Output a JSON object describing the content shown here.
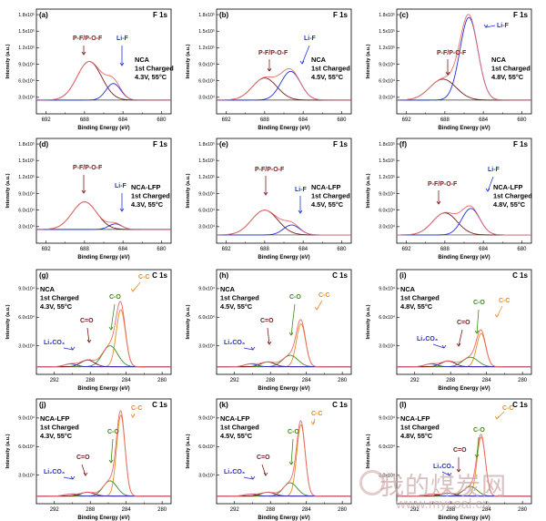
{
  "figure": {
    "colors": {
      "envelope": "#e96b6b",
      "pf": "#7a1a1a",
      "lif": "#1f2fe0",
      "c1": "#e88a20",
      "c2": "#3f8a16",
      "c3": "#7a1a1a",
      "c4": "#2b2bd6",
      "baseline": "#333333",
      "axis": "#000000"
    },
    "watermark": {
      "cn": "我的煤炭网",
      "url": "www.mycoal.cn"
    }
  },
  "chart_data": [
    {
      "id": "a",
      "type": "line",
      "panel_label": "(a)",
      "element": "F 1s",
      "xlabel": "Binding Energy (eV)",
      "ylabel": "Intensity (a.u.)",
      "xlim": [
        693,
        679
      ],
      "xticks": [
        692,
        688,
        684,
        680
      ],
      "ylim": [
        0,
        190000
      ],
      "yticks": [
        "3.0x10⁴",
        "6.0x10⁴",
        "9.0x10⁴",
        "1.2x10⁵",
        "1.5x10⁵",
        "1.8x10⁵"
      ],
      "ytick_values": [
        30000,
        60000,
        90000,
        120000,
        150000,
        180000
      ],
      "baseline": 25000,
      "peaks": [
        {
          "center": 687.5,
          "height": 70000,
          "fwhm": 3.0,
          "color": "pf"
        },
        {
          "center": 685.0,
          "height": 30000,
          "fwhm": 1.8,
          "color": "lif"
        }
      ],
      "labels": [
        {
          "text": "P-F/P-O-F",
          "color": "pf"
        },
        {
          "text": "Li-F",
          "color": "lif"
        }
      ],
      "info": [
        "NCA",
        "1st Charged",
        "4.3V, 55°C"
      ]
    },
    {
      "id": "b",
      "type": "line",
      "panel_label": "(b)",
      "element": "F 1s",
      "xlabel": "Binding Energy (eV)",
      "ylabel": "Intensity (a.u.)",
      "xlim": [
        693,
        679
      ],
      "xticks": [
        692,
        688,
        684,
        680
      ],
      "ylim": [
        0,
        190000
      ],
      "yticks": [
        "3.0x10⁴",
        "6.0x10⁴",
        "9.0x10⁴",
        "1.2x10⁵",
        "1.5x10⁵",
        "1.8x10⁵"
      ],
      "ytick_values": [
        30000,
        60000,
        90000,
        120000,
        150000,
        180000
      ],
      "baseline": 25000,
      "peaks": [
        {
          "center": 688.0,
          "height": 40000,
          "fwhm": 3.0,
          "color": "pf"
        },
        {
          "center": 685.3,
          "height": 52000,
          "fwhm": 2.4,
          "color": "lif"
        }
      ],
      "labels": [
        {
          "text": "P-F/P-O-F",
          "color": "pf"
        },
        {
          "text": "Li-F",
          "color": "lif"
        }
      ],
      "info": [
        "NCA",
        "1st Charged",
        "4.5V, 55°C"
      ]
    },
    {
      "id": "c",
      "type": "line",
      "panel_label": "(c)",
      "element": "F 1s",
      "xlabel": "Binding Energy (eV)",
      "ylabel": "Intensity (a.u.)",
      "xlim": [
        693,
        679
      ],
      "xticks": [
        692,
        688,
        684,
        680
      ],
      "ylim": [
        0,
        190000
      ],
      "yticks": [
        "3.0x10⁴",
        "6.0x10⁴",
        "9.0x10⁴",
        "1.2x10⁵",
        "1.5x10⁵",
        "1.8x10⁵"
      ],
      "ytick_values": [
        30000,
        60000,
        90000,
        120000,
        150000,
        180000
      ],
      "baseline": 25000,
      "peaks": [
        {
          "center": 688.2,
          "height": 38000,
          "fwhm": 3.2,
          "color": "pf"
        },
        {
          "center": 685.5,
          "height": 150000,
          "fwhm": 2.2,
          "color": "lif"
        }
      ],
      "labels": [
        {
          "text": "P-F/P-O-F",
          "color": "pf"
        },
        {
          "text": "Li-F",
          "color": "lif"
        }
      ],
      "info": [
        "NCA",
        "1st Charged",
        "4.8V, 55°C"
      ]
    },
    {
      "id": "d",
      "type": "line",
      "panel_label": "(d)",
      "element": "F 1s",
      "xlabel": "Binding Energy (eV)",
      "ylabel": "Intensity (a.u.)",
      "xlim": [
        693,
        679
      ],
      "xticks": [
        692,
        688,
        684,
        680
      ],
      "ylim": [
        0,
        190000
      ],
      "yticks": [
        "3.0x10⁴",
        "6.0x10⁴",
        "9.0x10⁴",
        "1.2x10⁵",
        "1.5x10⁵",
        "1.8x10⁵"
      ],
      "ytick_values": [
        30000,
        60000,
        90000,
        120000,
        150000,
        180000
      ],
      "baseline": 25000,
      "peaks": [
        {
          "center": 688.0,
          "height": 50000,
          "fwhm": 3.0,
          "color": "pf"
        },
        {
          "center": 684.8,
          "height": 10000,
          "fwhm": 1.6,
          "color": "lif"
        }
      ],
      "labels": [
        {
          "text": "P-F/P-O-F",
          "color": "pf"
        },
        {
          "text": "Li-F",
          "color": "lif"
        }
      ],
      "info": [
        "NCA-LFP",
        "1st Charged",
        "4.3V, 55°C"
      ]
    },
    {
      "id": "e",
      "type": "line",
      "panel_label": "(e)",
      "element": "F 1s",
      "xlabel": "Binding Energy (eV)",
      "ylabel": "Intensity (a.u.)",
      "xlim": [
        693,
        679
      ],
      "xticks": [
        692,
        688,
        684,
        680
      ],
      "ylim": [
        0,
        190000
      ],
      "yticks": [
        "3.0x10⁴",
        "6.0x10⁴",
        "9.0x10⁴",
        "1.2x10⁵",
        "1.5x10⁵",
        "1.8x10⁵"
      ],
      "ytick_values": [
        30000,
        60000,
        90000,
        120000,
        150000,
        180000
      ],
      "baseline": 15000,
      "peaks": [
        {
          "center": 688.0,
          "height": 45000,
          "fwhm": 3.2,
          "color": "pf"
        },
        {
          "center": 685.2,
          "height": 18000,
          "fwhm": 2.0,
          "color": "lif"
        }
      ],
      "labels": [
        {
          "text": "P-F/P-O-F",
          "color": "pf"
        },
        {
          "text": "Li-F",
          "color": "lif"
        }
      ],
      "info": [
        "NCA-LFP",
        "1st Charged",
        "4.5V, 55°C"
      ]
    },
    {
      "id": "f",
      "type": "line",
      "panel_label": "(f)",
      "element": "F 1s",
      "xlabel": "Binding Energy (eV)",
      "ylabel": "Intensity (a.u.)",
      "xlim": [
        693,
        679
      ],
      "xticks": [
        692,
        688,
        684,
        680
      ],
      "ylim": [
        0,
        190000
      ],
      "yticks": [
        "3.0x10⁴",
        "6.0x10⁴",
        "9.0x10⁴",
        "1.2x10⁵",
        "1.5x10⁵",
        "1.8x10⁵"
      ],
      "ytick_values": [
        30000,
        60000,
        90000,
        120000,
        150000,
        180000
      ],
      "baseline": 15000,
      "peaks": [
        {
          "center": 688.0,
          "height": 40000,
          "fwhm": 3.0,
          "color": "pf"
        },
        {
          "center": 685.3,
          "height": 48000,
          "fwhm": 2.2,
          "color": "lif"
        }
      ],
      "labels": [
        {
          "text": "P-F/P-O-F",
          "color": "pf"
        },
        {
          "text": "Li-F",
          "color": "lif"
        }
      ],
      "info": [
        "NCA-LFP",
        "1st Charged",
        "4.8V, 55°C"
      ]
    },
    {
      "id": "g",
      "type": "line",
      "panel_label": "(g)",
      "element": "C 1s",
      "xlabel": "Binding Energy (eV)",
      "ylabel": "Intensity (a.u.)",
      "xlim": [
        294,
        279
      ],
      "xticks": [
        292,
        288,
        284,
        280
      ],
      "ylim": [
        0,
        110000
      ],
      "yticks": [
        "3.0x10⁴",
        "6.0x10⁴",
        "9.0x10⁴"
      ],
      "ytick_values": [
        30000,
        60000,
        90000
      ],
      "baseline": 8000,
      "peaks": [
        {
          "center": 284.6,
          "height": 60000,
          "fwhm": 1.2,
          "color": "c1"
        },
        {
          "center": 285.8,
          "height": 22000,
          "fwhm": 2.0,
          "color": "c2"
        },
        {
          "center": 288.3,
          "height": 7000,
          "fwhm": 1.8,
          "color": "c3"
        },
        {
          "center": 290.2,
          "height": 3000,
          "fwhm": 1.6,
          "color": "c4"
        }
      ],
      "labels": [
        {
          "text": "C-C",
          "color": "c1"
        },
        {
          "text": "C-O",
          "color": "c2"
        },
        {
          "text": "C=O",
          "color": "c3"
        },
        {
          "text": "Li₂CO₃",
          "color": "c4"
        }
      ],
      "info": [
        "NCA",
        "1st Charged",
        "4.3V, 55°C"
      ]
    },
    {
      "id": "h",
      "type": "line",
      "panel_label": "(h)",
      "element": "C 1s",
      "xlabel": "Binding Energy (eV)",
      "ylabel": "Intensity (a.u.)",
      "xlim": [
        294,
        279
      ],
      "xticks": [
        292,
        288,
        284,
        280
      ],
      "ylim": [
        0,
        110000
      ],
      "yticks": [
        "3.0x10⁴",
        "6.0x10⁴",
        "9.0x10⁴"
      ],
      "ytick_values": [
        30000,
        60000,
        90000
      ],
      "baseline": 8000,
      "peaks": [
        {
          "center": 284.6,
          "height": 45000,
          "fwhm": 1.2,
          "color": "c1"
        },
        {
          "center": 285.8,
          "height": 12000,
          "fwhm": 2.0,
          "color": "c2"
        },
        {
          "center": 288.3,
          "height": 5000,
          "fwhm": 1.8,
          "color": "c3"
        },
        {
          "center": 290.2,
          "height": 3000,
          "fwhm": 1.6,
          "color": "c4"
        }
      ],
      "labels": [
        {
          "text": "C-C",
          "color": "c1"
        },
        {
          "text": "C-O",
          "color": "c2"
        },
        {
          "text": "C=O",
          "color": "c3"
        },
        {
          "text": "Li₂CO₃",
          "color": "c4"
        }
      ],
      "info": [
        "NCA",
        "1st Charged",
        "4.5V, 55°C"
      ]
    },
    {
      "id": "i",
      "type": "line",
      "panel_label": "(i)",
      "element": "C 1s",
      "xlabel": "Binding Energy (eV)",
      "ylabel": "Intensity (a.u.)",
      "xlim": [
        294,
        279
      ],
      "xticks": [
        292,
        288,
        284,
        280
      ],
      "ylim": [
        0,
        110000
      ],
      "yticks": [
        "3.0x10⁴",
        "6.0x10⁴",
        "9.0x10⁴"
      ],
      "ytick_values": [
        30000,
        60000,
        90000
      ],
      "baseline": 8000,
      "peaks": [
        {
          "center": 284.6,
          "height": 35000,
          "fwhm": 1.2,
          "color": "c1"
        },
        {
          "center": 285.8,
          "height": 10000,
          "fwhm": 2.0,
          "color": "c2"
        },
        {
          "center": 288.3,
          "height": 6000,
          "fwhm": 1.8,
          "color": "c3"
        },
        {
          "center": 290.2,
          "height": 3000,
          "fwhm": 1.6,
          "color": "c4"
        }
      ],
      "labels": [
        {
          "text": "C-C",
          "color": "c1"
        },
        {
          "text": "C-O",
          "color": "c2"
        },
        {
          "text": "C=O",
          "color": "c3"
        },
        {
          "text": "Li₂CO₃",
          "color": "c4"
        }
      ],
      "info": [
        "NCA",
        "1st Charged",
        "4.8V, 55°C"
      ]
    },
    {
      "id": "j",
      "type": "line",
      "panel_label": "(j)",
      "element": "C 1s",
      "xlabel": "Binding Energy (eV)",
      "ylabel": "Intensity (a.u.)",
      "xlim": [
        294,
        279
      ],
      "xticks": [
        292,
        288,
        284,
        280
      ],
      "ylim": [
        0,
        110000
      ],
      "yticks": [
        "3.0x10⁴",
        "6.0x10⁴",
        "9.0x10⁴"
      ],
      "ytick_values": [
        30000,
        60000,
        90000
      ],
      "baseline": 8000,
      "peaks": [
        {
          "center": 284.6,
          "height": 85000,
          "fwhm": 1.1,
          "color": "c1"
        },
        {
          "center": 285.8,
          "height": 16000,
          "fwhm": 1.8,
          "color": "c2"
        },
        {
          "center": 288.3,
          "height": 4000,
          "fwhm": 1.8,
          "color": "c3"
        },
        {
          "center": 290.2,
          "height": 2000,
          "fwhm": 1.6,
          "color": "c4"
        }
      ],
      "labels": [
        {
          "text": "C-C",
          "color": "c1"
        },
        {
          "text": "C-O",
          "color": "c2"
        },
        {
          "text": "C=O",
          "color": "c3"
        },
        {
          "text": "Li₂CO₃",
          "color": "c4"
        }
      ],
      "info": [
        "NCA-LFP",
        "1st Charged",
        "4.3V, 55°C"
      ]
    },
    {
      "id": "k",
      "type": "line",
      "panel_label": "(k)",
      "element": "C 1s",
      "xlabel": "Binding Energy (eV)",
      "ylabel": "Intensity (a.u.)",
      "xlim": [
        294,
        279
      ],
      "xticks": [
        292,
        288,
        284,
        280
      ],
      "ylim": [
        0,
        110000
      ],
      "yticks": [
        "3.0x10⁴",
        "6.0x10⁴",
        "9.0x10⁴"
      ],
      "ytick_values": [
        30000,
        60000,
        90000
      ],
      "baseline": 8000,
      "peaks": [
        {
          "center": 284.6,
          "height": 75000,
          "fwhm": 1.1,
          "color": "c1"
        },
        {
          "center": 285.8,
          "height": 14000,
          "fwhm": 1.8,
          "color": "c2"
        },
        {
          "center": 288.3,
          "height": 4000,
          "fwhm": 1.8,
          "color": "c3"
        },
        {
          "center": 290.2,
          "height": 2000,
          "fwhm": 1.6,
          "color": "c4"
        }
      ],
      "labels": [
        {
          "text": "C-C",
          "color": "c1"
        },
        {
          "text": "C-O",
          "color": "c2"
        },
        {
          "text": "C=O",
          "color": "c3"
        },
        {
          "text": "Li₂CO₃",
          "color": "c4"
        }
      ],
      "info": [
        "NCA-LFP",
        "1st Charged",
        "4.5V, 55°C"
      ]
    },
    {
      "id": "l",
      "type": "line",
      "panel_label": "(l)",
      "element": "C 1s",
      "xlabel": "Binding Energy (eV)",
      "ylabel": "Intensity (a.u.)",
      "xlim": [
        294,
        279
      ],
      "xticks": [
        292,
        288,
        284,
        280
      ],
      "ylim": [
        0,
        110000
      ],
      "yticks": [
        "3.0x10⁴",
        "6.0x10⁴",
        "9.0x10⁴"
      ],
      "ytick_values": [
        30000,
        60000,
        90000
      ],
      "baseline": 8000,
      "peaks": [
        {
          "center": 284.6,
          "height": 62000,
          "fwhm": 1.1,
          "color": "c1"
        },
        {
          "center": 285.8,
          "height": 10000,
          "fwhm": 1.8,
          "color": "c2"
        },
        {
          "center": 288.3,
          "height": 3000,
          "fwhm": 1.8,
          "color": "c3"
        },
        {
          "center": 290.2,
          "height": 2000,
          "fwhm": 1.6,
          "color": "c4"
        }
      ],
      "labels": [
        {
          "text": "C-C",
          "color": "c1"
        },
        {
          "text": "C-O",
          "color": "c2"
        },
        {
          "text": "C=O",
          "color": "c3"
        },
        {
          "text": "Li₂CO₃",
          "color": "c4"
        }
      ],
      "info": [
        "NCA-LFP",
        "1st Charged",
        "4.8V, 55°C"
      ]
    }
  ]
}
